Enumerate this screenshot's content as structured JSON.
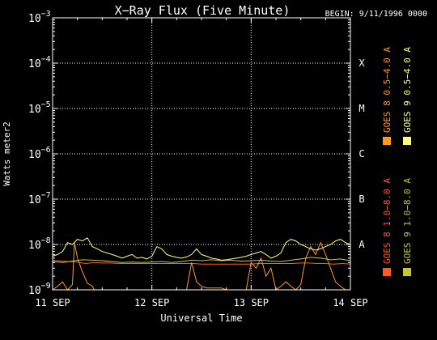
{
  "chart_data": {
    "type": "line",
    "title": "X−Ray Flux (Five Minute)",
    "begin_label": "BEGIN: 9/11/1996 0000",
    "xlabel": "Universal Time",
    "ylabel": "Watts meter2",
    "x_range": [
      "1996-09-11T00:00",
      "1996-09-14T00:00"
    ],
    "x_ticks": [
      "11 SEP",
      "12 SEP",
      "13 SEP",
      "14 SEP"
    ],
    "x_tick_days": [
      0,
      1,
      2,
      3
    ],
    "y_scale": "log",
    "ylim": [
      1e-09,
      0.001
    ],
    "y_ticks": [
      {
        "base": "10",
        "exp": "−9"
      },
      {
        "base": "10",
        "exp": "−8"
      },
      {
        "base": "10",
        "exp": "−7"
      },
      {
        "base": "10",
        "exp": "−6"
      },
      {
        "base": "10",
        "exp": "−5"
      },
      {
        "base": "10",
        "exp": "−4"
      },
      {
        "base": "10",
        "exp": "−3"
      }
    ],
    "flare_classes": [
      {
        "label": "A",
        "level": -8
      },
      {
        "label": "B",
        "level": -7
      },
      {
        "label": "C",
        "level": -6
      },
      {
        "label": "M",
        "level": -5
      },
      {
        "label": "X",
        "level": -4
      }
    ],
    "grid": true,
    "legend_position": "right-vertical",
    "series": [
      {
        "name": "GOES 8 1.0−8.0 A",
        "color": "#ff5a1e",
        "x": [
          0,
          0.08,
          0.17,
          0.25,
          0.33,
          0.42,
          0.5,
          0.58,
          0.67,
          0.75,
          0.83,
          0.92,
          1.0,
          1.08,
          1.17,
          1.25,
          1.33,
          1.42,
          1.5,
          1.58,
          1.67,
          1.75,
          1.83,
          1.92,
          2.0,
          2.08,
          2.17,
          2.25,
          2.33,
          2.42,
          2.5,
          2.58,
          2.67,
          2.75,
          2.83,
          2.92,
          3.0
        ],
        "y": [
          4.5e-09,
          4.3e-09,
          4.2e-09,
          4.1e-09,
          3.8e-09,
          4e-09,
          3.9e-09,
          3.9e-09,
          3.8e-09,
          3.8e-09,
          3.8e-09,
          3.8e-09,
          3.8e-09,
          3.8e-09,
          3.8e-09,
          3.8e-09,
          3.8e-09,
          3.8e-09,
          3.7e-09,
          3.7e-09,
          3.7e-09,
          3.7e-09,
          3.7e-09,
          3.7e-09,
          3.7e-09,
          3.8e-09,
          3.8e-09,
          3.8e-09,
          3.8e-09,
          3.8e-09,
          3.9e-09,
          3.9e-09,
          3.8e-09,
          3.8e-09,
          3.7e-09,
          3.8e-09,
          3.7e-09
        ]
      },
      {
        "name": "GOES 8 0.5−4.0 A",
        "color": "#ff9a20",
        "x": [
          0,
          0.05,
          0.1,
          0.15,
          0.2,
          0.22,
          0.25,
          0.3,
          0.35,
          0.4,
          0.42,
          0.45,
          0.5,
          0.55,
          0.6,
          0.65,
          0.7,
          0.75,
          0.8,
          0.85,
          0.9,
          0.95,
          1.0,
          1.05,
          1.1,
          1.15,
          1.2,
          1.25,
          1.3,
          1.35,
          1.4,
          1.45,
          1.5,
          1.55,
          1.6,
          1.65,
          1.7,
          1.75,
          1.8,
          1.85,
          1.9,
          1.95,
          2.0,
          2.05,
          2.1,
          2.15,
          2.2,
          2.25,
          2.3,
          2.35,
          2.4,
          2.45,
          2.5,
          2.55,
          2.6,
          2.65,
          2.7,
          2.75,
          2.8,
          2.85,
          2.9,
          2.95,
          3.0
        ],
        "y": [
          1e-09,
          1.2e-09,
          1.5e-09,
          1e-09,
          1.3e-09,
          1.1e-08,
          5e-09,
          2.5e-09,
          1.4e-09,
          1.2e-09,
          1e-09,
          1e-09,
          1e-09,
          1e-09,
          1e-09,
          1e-09,
          1e-09,
          1e-09,
          1e-09,
          1e-09,
          1e-09,
          1e-09,
          1e-09,
          1e-09,
          1e-09,
          1e-09,
          1e-09,
          1e-09,
          1e-09,
          1e-09,
          4e-09,
          1.5e-09,
          1.2e-09,
          1.1e-09,
          1.1e-09,
          1.1e-09,
          1.1e-09,
          1e-09,
          1e-09,
          1e-09,
          1e-09,
          1e-09,
          4e-09,
          3e-09,
          5e-09,
          2e-09,
          3e-09,
          1e-09,
          1.2e-09,
          1.5e-09,
          1.2e-09,
          1e-09,
          1.3e-09,
          5e-09,
          9e-09,
          6e-09,
          1.1e-08,
          6e-09,
          3e-09,
          1.5e-09,
          1.2e-09,
          1e-09,
          1e-09
        ]
      },
      {
        "name": "GOES 9 1.0−8.0 A",
        "color": "#c8c828",
        "x": [
          0,
          0.1,
          0.2,
          0.3,
          0.4,
          0.5,
          0.6,
          0.7,
          0.8,
          0.9,
          1.0,
          1.1,
          1.2,
          1.3,
          1.4,
          1.5,
          1.6,
          1.7,
          1.8,
          1.9,
          2.0,
          2.1,
          2.2,
          2.3,
          2.4,
          2.5,
          2.6,
          2.7,
          2.8,
          2.9,
          3.0
        ],
        "y": [
          4.2e-09,
          4e-09,
          4.3e-09,
          4.6e-09,
          4.5e-09,
          4.4e-09,
          4.2e-09,
          4e-09,
          4.1e-09,
          4e-09,
          4.1e-09,
          4.2e-09,
          4e-09,
          4.2e-09,
          4.5e-09,
          4.4e-09,
          4.6e-09,
          4.4e-09,
          4.5e-09,
          4.3e-09,
          4.4e-09,
          4.5e-09,
          4.3e-09,
          4.2e-09,
          4.5e-09,
          4.8e-09,
          5.2e-09,
          5e-09,
          4.6e-09,
          4.8e-09,
          4.4e-09
        ]
      },
      {
        "name": "GOES 9 0.5−4.0 A",
        "color": "#ffff80",
        "x": [
          0,
          0.05,
          0.1,
          0.15,
          0.2,
          0.25,
          0.3,
          0.35,
          0.4,
          0.45,
          0.5,
          0.55,
          0.6,
          0.65,
          0.7,
          0.75,
          0.8,
          0.85,
          0.9,
          0.95,
          1.0,
          1.05,
          1.1,
          1.15,
          1.2,
          1.25,
          1.3,
          1.35,
          1.4,
          1.45,
          1.5,
          1.55,
          1.6,
          1.65,
          1.7,
          1.75,
          1.8,
          1.85,
          1.9,
          1.95,
          2.0,
          2.05,
          2.1,
          2.15,
          2.2,
          2.25,
          2.3,
          2.35,
          2.4,
          2.45,
          2.5,
          2.55,
          2.6,
          2.65,
          2.7,
          2.75,
          2.8,
          2.85,
          2.9,
          2.95,
          3.0
        ],
        "y": [
          5.5e-09,
          6e-09,
          7e-09,
          1.1e-08,
          1e-08,
          1.3e-08,
          1.2e-08,
          1.4e-08,
          9e-09,
          8e-09,
          7e-09,
          6.5e-09,
          6e-09,
          5.5e-09,
          5e-09,
          5.5e-09,
          6e-09,
          5e-09,
          5.2e-09,
          4.8e-09,
          5.5e-09,
          9e-09,
          8e-09,
          6e-09,
          5.5e-09,
          5.2e-09,
          5e-09,
          5.3e-09,
          6e-09,
          8e-09,
          6e-09,
          5.5e-09,
          5e-09,
          4.8e-09,
          4.5e-09,
          4.6e-09,
          4.8e-09,
          5e-09,
          5.2e-09,
          5.5e-09,
          6e-09,
          6.5e-09,
          7e-09,
          6e-09,
          5e-09,
          5.5e-09,
          6.5e-09,
          1.1e-08,
          1.3e-08,
          1.2e-08,
          1e-08,
          9e-09,
          8e-09,
          7.5e-09,
          8e-09,
          9e-09,
          1e-08,
          1.2e-08,
          1.3e-08,
          1.1e-08,
          1e-08
        ]
      }
    ]
  }
}
